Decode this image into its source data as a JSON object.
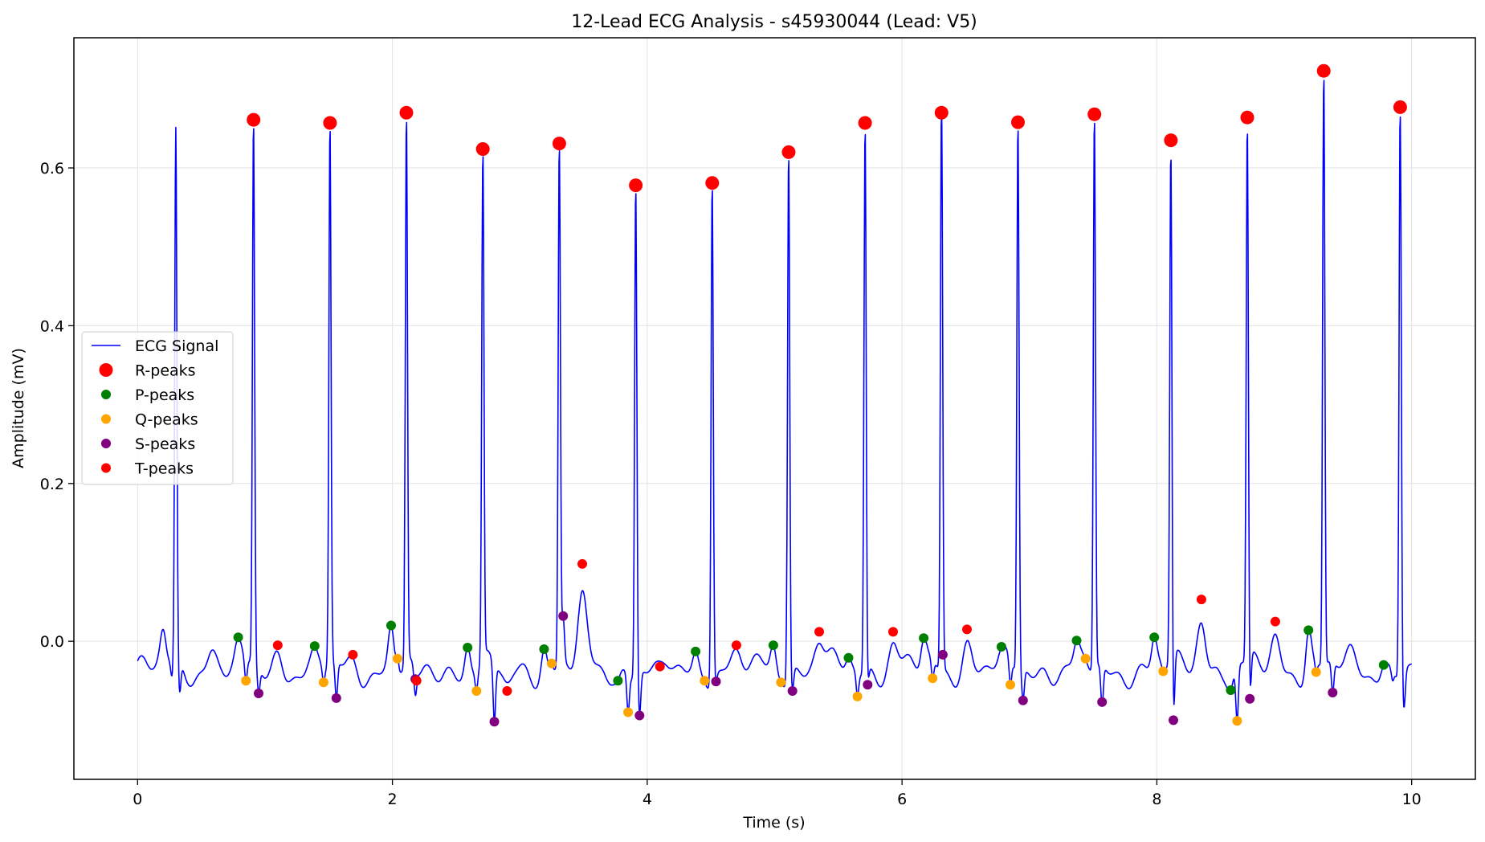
{
  "chart_data": {
    "type": "line",
    "title": "12-Lead ECG Analysis - s45930044 (Lead: V5)",
    "xlabel": "Time (s)",
    "ylabel": "Amplitude (mV)",
    "xlim": [
      -0.5,
      10.5
    ],
    "ylim": [
      -0.175,
      0.765
    ],
    "xticks": [
      0,
      2,
      4,
      6,
      8,
      10
    ],
    "yticks": [
      0.0,
      0.2,
      0.4,
      0.6
    ],
    "grid": true,
    "legend_position": "center-left",
    "colors": {
      "signal": "#0000ff",
      "r_peaks": "#ff0000",
      "p_peaks": "#008000",
      "q_peaks": "#ffa500",
      "s_peaks": "#800080",
      "t_peaks": "#ff0000"
    },
    "signal": {
      "name": "ECG Signal",
      "duration": 10,
      "beats": [
        {
          "p": [
            0.2,
            0.015
          ],
          "q": [
            0.27,
            -0.045
          ],
          "r": [
            0.3,
            0.652
          ],
          "s": [
            0.33,
            -0.065
          ],
          "t": [
            0.58,
            0.0
          ]
        },
        {
          "p": [
            0.79,
            0.005
          ],
          "q": [
            0.85,
            -0.05
          ],
          "r": [
            0.91,
            0.661
          ],
          "s": [
            0.95,
            -0.066
          ],
          "t": [
            1.1,
            -0.005
          ]
        },
        {
          "p": [
            1.39,
            -0.006
          ],
          "q": [
            1.46,
            -0.052
          ],
          "r": [
            1.51,
            0.657
          ],
          "s": [
            1.56,
            -0.072
          ],
          "t": [
            1.69,
            -0.017
          ]
        },
        {
          "p": [
            1.99,
            0.02
          ],
          "q": [
            2.04,
            -0.022
          ],
          "r": [
            2.11,
            0.67
          ],
          "s": [
            2.18,
            -0.048
          ],
          "t": [
            2.19,
            -0.05
          ]
        },
        {
          "p": [
            2.59,
            -0.008
          ],
          "q": [
            2.66,
            -0.063
          ],
          "r": [
            2.71,
            0.624
          ],
          "s": [
            2.8,
            -0.102
          ],
          "t": [
            2.9,
            -0.063
          ]
        },
        {
          "p": [
            3.19,
            -0.01
          ],
          "q": [
            3.25,
            -0.028
          ],
          "r": [
            3.31,
            0.631
          ],
          "s": [
            3.34,
            0.032
          ],
          "t": [
            3.49,
            0.098
          ]
        },
        {
          "p": [
            3.77,
            -0.05
          ],
          "q": [
            3.85,
            -0.09
          ],
          "r": [
            3.91,
            0.578
          ],
          "s": [
            3.94,
            -0.094
          ],
          "t": [
            4.1,
            -0.032
          ]
        },
        {
          "p": [
            4.38,
            -0.013
          ],
          "q": [
            4.45,
            -0.05
          ],
          "r": [
            4.51,
            0.581
          ],
          "s": [
            4.54,
            -0.051
          ],
          "t": [
            4.7,
            -0.005
          ]
        },
        {
          "p": [
            4.99,
            -0.005
          ],
          "q": [
            5.05,
            -0.052
          ],
          "r": [
            5.11,
            0.62
          ],
          "s": [
            5.14,
            -0.063
          ],
          "t": [
            5.35,
            0.012
          ]
        },
        {
          "p": [
            5.58,
            -0.021
          ],
          "q": [
            5.65,
            -0.07
          ],
          "r": [
            5.71,
            0.657
          ],
          "s": [
            5.73,
            -0.055
          ],
          "t": [
            5.93,
            0.012
          ]
        },
        {
          "p": [
            6.17,
            0.004
          ],
          "q": [
            6.24,
            -0.047
          ],
          "r": [
            6.31,
            0.67
          ],
          "s": [
            6.32,
            -0.017
          ],
          "t": [
            6.51,
            0.015
          ]
        },
        {
          "p": [
            6.78,
            -0.007
          ],
          "q": [
            6.85,
            -0.055
          ],
          "r": [
            6.91,
            0.658
          ],
          "s": [
            6.95,
            -0.075
          ],
          "t": [
            6.99,
            -0.04
          ]
        },
        {
          "p": [
            7.37,
            0.001
          ],
          "q": [
            7.44,
            -0.022
          ],
          "r": [
            7.51,
            0.668
          ],
          "s": [
            7.57,
            -0.077
          ],
          "t": [
            7.6,
            -0.04
          ]
        },
        {
          "p": [
            7.98,
            0.005
          ],
          "q": [
            8.05,
            -0.038
          ],
          "r": [
            8.11,
            0.635
          ],
          "s": [
            8.13,
            -0.1
          ],
          "t": [
            8.35,
            0.053
          ]
        },
        {
          "p": [
            8.58,
            -0.062
          ],
          "q": [
            8.63,
            -0.101
          ],
          "r": [
            8.71,
            0.664
          ],
          "s": [
            8.73,
            -0.073
          ],
          "t": [
            8.93,
            0.025
          ]
        },
        {
          "p": [
            9.19,
            0.014
          ],
          "q": [
            9.25,
            -0.039
          ],
          "r": [
            9.31,
            0.723
          ],
          "s": [
            9.38,
            -0.065
          ],
          "t": [
            9.52,
            0.0
          ]
        },
        {
          "p": [
            9.78,
            -0.03
          ],
          "q": [
            9.85,
            -0.05
          ],
          "r": [
            9.91,
            0.677
          ],
          "s": [
            9.94,
            -0.085
          ],
          "t": [
            10.0,
            -0.03
          ]
        }
      ]
    },
    "series": [
      {
        "name": "R-peaks",
        "points": [
          [
            0.91,
            0.661
          ],
          [
            1.51,
            0.657
          ],
          [
            2.11,
            0.67
          ],
          [
            2.71,
            0.624
          ],
          [
            3.31,
            0.631
          ],
          [
            3.91,
            0.578
          ],
          [
            4.51,
            0.581
          ],
          [
            5.11,
            0.62
          ],
          [
            5.71,
            0.657
          ],
          [
            6.31,
            0.67
          ],
          [
            6.91,
            0.658
          ],
          [
            7.51,
            0.668
          ],
          [
            8.11,
            0.635
          ],
          [
            8.71,
            0.664
          ],
          [
            9.31,
            0.723
          ],
          [
            9.91,
            0.677
          ]
        ]
      },
      {
        "name": "P-peaks",
        "points": [
          [
            0.79,
            0.005
          ],
          [
            1.39,
            -0.006
          ],
          [
            1.99,
            0.02
          ],
          [
            2.59,
            -0.008
          ],
          [
            3.19,
            -0.01
          ],
          [
            3.77,
            -0.05
          ],
          [
            4.38,
            -0.013
          ],
          [
            4.99,
            -0.005
          ],
          [
            5.58,
            -0.021
          ],
          [
            6.17,
            0.004
          ],
          [
            6.78,
            -0.007
          ],
          [
            7.37,
            0.001
          ],
          [
            7.98,
            0.005
          ],
          [
            8.58,
            -0.062
          ],
          [
            9.19,
            0.014
          ],
          [
            9.78,
            -0.03
          ]
        ]
      },
      {
        "name": "Q-peaks",
        "points": [
          [
            0.85,
            -0.05
          ],
          [
            1.46,
            -0.052
          ],
          [
            2.04,
            -0.022
          ],
          [
            2.66,
            -0.063
          ],
          [
            3.25,
            -0.028
          ],
          [
            3.85,
            -0.09
          ],
          [
            4.45,
            -0.05
          ],
          [
            5.05,
            -0.052
          ],
          [
            5.65,
            -0.07
          ],
          [
            6.24,
            -0.047
          ],
          [
            6.85,
            -0.055
          ],
          [
            7.44,
            -0.022
          ],
          [
            8.05,
            -0.038
          ],
          [
            8.63,
            -0.101
          ],
          [
            9.25,
            -0.039
          ]
        ]
      },
      {
        "name": "S-peaks",
        "points": [
          [
            0.95,
            -0.066
          ],
          [
            1.56,
            -0.072
          ],
          [
            2.18,
            -0.048
          ],
          [
            2.8,
            -0.102
          ],
          [
            3.34,
            0.032
          ],
          [
            3.94,
            -0.094
          ],
          [
            4.54,
            -0.051
          ],
          [
            5.14,
            -0.063
          ],
          [
            5.73,
            -0.055
          ],
          [
            6.32,
            -0.017
          ],
          [
            6.95,
            -0.075
          ],
          [
            7.57,
            -0.077
          ],
          [
            8.13,
            -0.1
          ],
          [
            8.73,
            -0.073
          ],
          [
            9.38,
            -0.065
          ]
        ]
      },
      {
        "name": "T-peaks",
        "points": [
          [
            1.1,
            -0.005
          ],
          [
            1.69,
            -0.017
          ],
          [
            2.19,
            -0.05
          ],
          [
            2.9,
            -0.063
          ],
          [
            3.49,
            0.098
          ],
          [
            4.1,
            -0.032
          ],
          [
            4.7,
            -0.005
          ],
          [
            5.35,
            0.012
          ],
          [
            5.93,
            0.012
          ],
          [
            6.51,
            0.015
          ],
          [
            8.35,
            0.053
          ],
          [
            8.93,
            0.025
          ]
        ]
      }
    ]
  }
}
